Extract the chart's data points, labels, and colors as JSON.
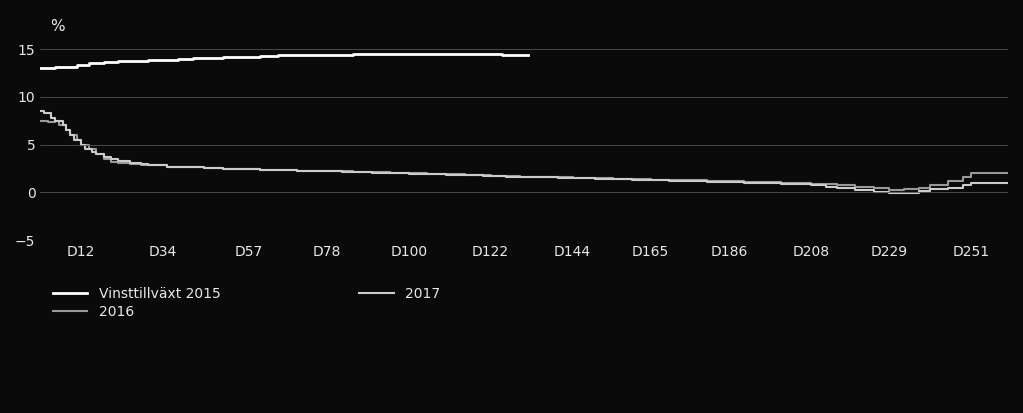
{
  "background_color": "#0a0a0a",
  "text_color": "#e8e8e8",
  "grid_color": "#555555",
  "ylabel": "%",
  "ylim": [
    -5,
    16
  ],
  "yticks": [
    -5,
    0,
    5,
    10,
    15
  ],
  "xtick_labels": [
    "D12",
    "D34",
    "D57",
    "D78",
    "D100",
    "D122",
    "D144",
    "D165",
    "D186",
    "D208",
    "D229",
    "D251"
  ],
  "xtick_positions": [
    12,
    34,
    57,
    78,
    100,
    122,
    144,
    165,
    186,
    208,
    229,
    251
  ],
  "line_colors": {
    "2015": "#ffffff",
    "2016": "#999999",
    "2017": "#cccccc"
  },
  "line_widths": {
    "2015": 2.0,
    "2016": 1.5,
    "2017": 1.5
  },
  "legend_labels": [
    "Vinsttillväxt 2015",
    "2016",
    "2017"
  ],
  "xlim_start": 1,
  "xlim_end": 261
}
